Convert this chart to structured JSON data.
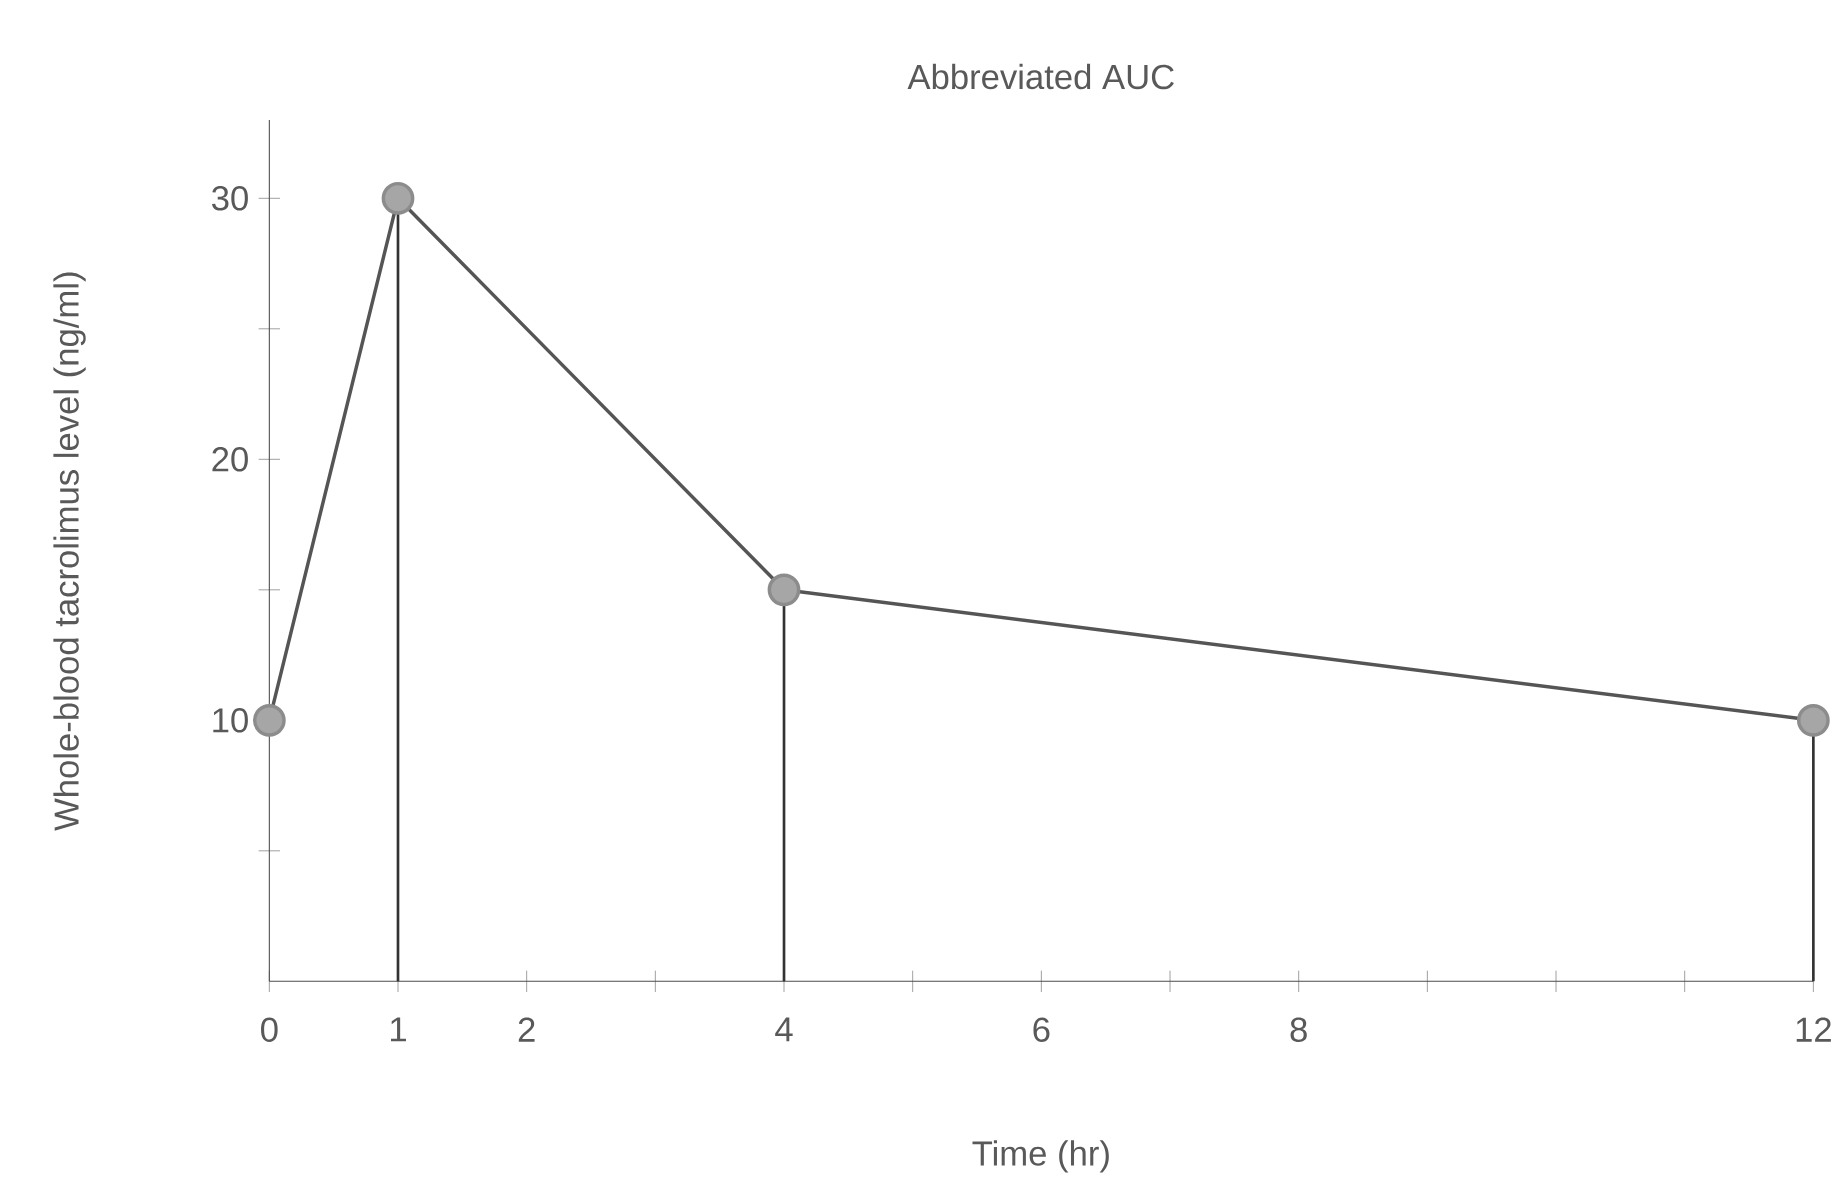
{
  "chart_data": {
    "type": "line",
    "title": "Abbreviated AUC",
    "xlabel": "Time (hr)",
    "ylabel": "Whole-blood tacrolimus level (ng/ml)",
    "x": [
      0,
      1,
      4,
      12
    ],
    "series": [
      {
        "color": "#555555",
        "values": [
          10,
          30,
          15,
          10
        ]
      }
    ],
    "marker": "circle",
    "line_style": "solid",
    "grid": false,
    "xlim": [
      0,
      12
    ],
    "ylim": [
      0,
      33
    ],
    "xticks": [
      0,
      1,
      2,
      {
        "value": 3,
        "label": null
      },
      4,
      {
        "value": 5,
        "label": null
      },
      6,
      {
        "value": 7,
        "label": null
      },
      8,
      {
        "value": 9,
        "label": null
      },
      {
        "value": 10,
        "label": null
      },
      {
        "value": 11,
        "label": null
      },
      12
    ],
    "yticks": [
      {
        "value": 5,
        "label": null
      },
      10,
      {
        "value": 15,
        "label": null
      },
      20,
      {
        "value": 25,
        "label": null
      },
      30
    ],
    "ref_lines": [
      {
        "axis": "x",
        "value": 1,
        "color": "#333333"
      },
      {
        "axis": "x",
        "value": 4,
        "color": "#333333"
      },
      {
        "axis": "x",
        "value": 12,
        "color": "#333333"
      }
    ]
  }
}
